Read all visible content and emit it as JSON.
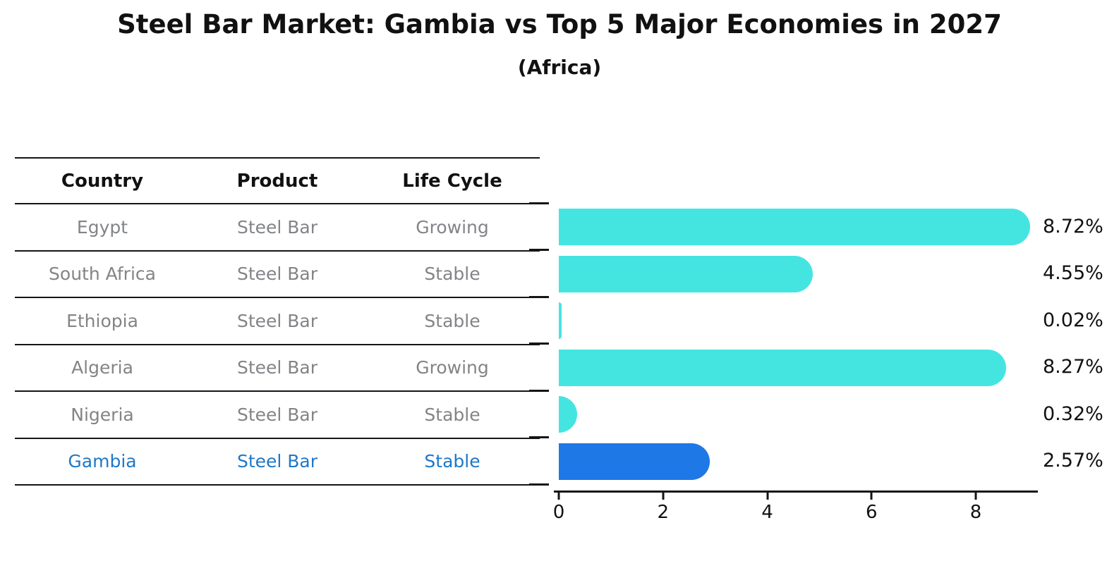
{
  "title": "Steel Bar Market: Gambia vs Top 5 Major Economies in 2027",
  "subtitle": "(Africa)",
  "table": {
    "headers": [
      "Country",
      "Product",
      "Life Cycle"
    ],
    "rows": [
      {
        "country": "Egypt",
        "product": "Steel Bar",
        "life_cycle": "Growing"
      },
      {
        "country": "South Africa",
        "product": "Steel Bar",
        "life_cycle": "Stable"
      },
      {
        "country": "Ethiopia",
        "product": "Steel Bar",
        "life_cycle": "Stable"
      },
      {
        "country": "Algeria",
        "product": "Steel Bar",
        "life_cycle": "Growing"
      },
      {
        "country": "Nigeria",
        "product": "Steel Bar",
        "life_cycle": "Stable"
      },
      {
        "country": "Gambia",
        "product": "Steel Bar",
        "life_cycle": "Stable"
      }
    ]
  },
  "chart_data": {
    "type": "bar",
    "orientation": "horizontal",
    "title": "Steel Bar Market: Gambia vs Top 5 Major Economies in 2027",
    "subtitle": "(Africa)",
    "categories": [
      "Egypt",
      "South Africa",
      "Ethiopia",
      "Algeria",
      "Nigeria",
      "Gambia"
    ],
    "values": [
      8.72,
      4.55,
      0.02,
      8.27,
      0.32,
      2.57
    ],
    "value_labels": [
      "8.72%",
      "4.55%",
      "0.02%",
      "8.27%",
      "0.32%",
      "2.57%"
    ],
    "x_ticks": [
      0,
      2,
      4,
      6,
      8
    ],
    "xlim": [
      0,
      9.2
    ],
    "grid": false,
    "legend": false,
    "bar_color": "#44e5e1",
    "highlight_color": "#1e78e6",
    "highlight_text_color": "#1f78c8",
    "highlight_index": 5,
    "highlight_category": "Gambia"
  }
}
